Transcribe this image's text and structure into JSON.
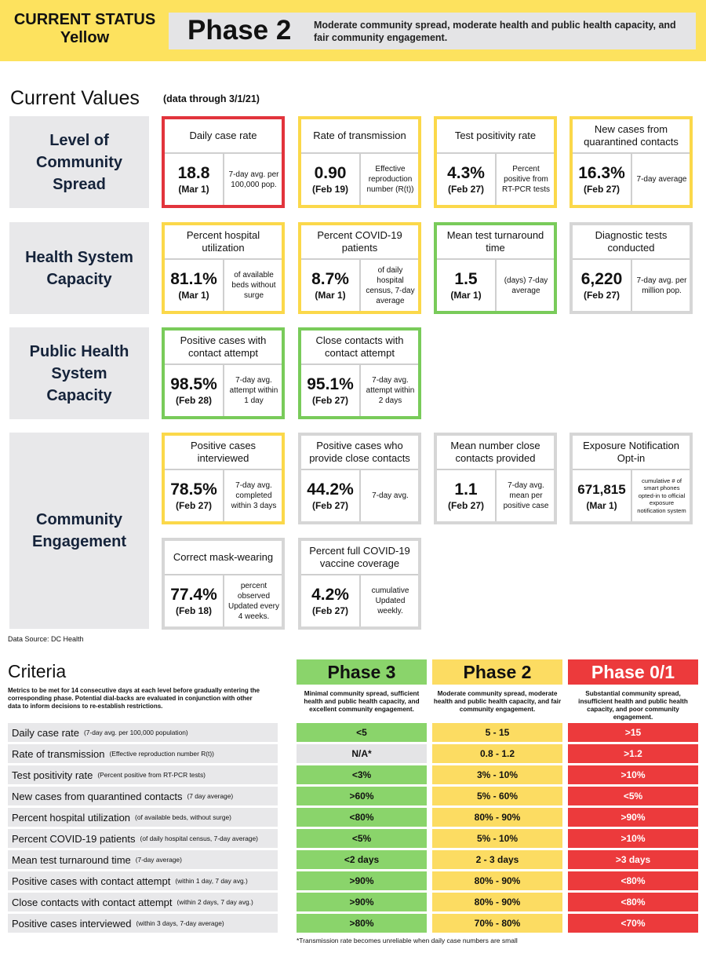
{
  "header": {
    "status_line1": "CURRENT STATUS",
    "status_line2": "Yellow",
    "phase": "Phase 2",
    "description": "Moderate community spread, moderate health and public health capacity, and fair community engagement.",
    "colors": {
      "banner": "#fde25e",
      "panel": "#e4e4e6"
    }
  },
  "current_values": {
    "title": "Current Values",
    "subtitle": "(data through 3/1/21)",
    "rows": [
      {
        "label": "Level of Community Spread",
        "cards": [
          {
            "title": "Daily case rate",
            "value": "18.8",
            "date": "(Mar 1)",
            "desc": "7-day avg. per 100,000 pop.",
            "status": "red"
          },
          {
            "title": "Rate of transmission",
            "value": "0.90",
            "date": "(Feb 19)",
            "desc": "Effective reproduction number (R(t))",
            "status": "yellow"
          },
          {
            "title": "Test positivity rate",
            "value": "4.3%",
            "date": "(Feb 27)",
            "desc": "Percent positive from RT-PCR tests",
            "status": "yellow"
          },
          {
            "title": "New cases from quarantined contacts",
            "value": "16.3%",
            "date": "(Feb 27)",
            "desc": "7-day average",
            "status": "yellow"
          }
        ]
      },
      {
        "label": "Health System Capacity",
        "cards": [
          {
            "title": "Percent hospital utilization",
            "value": "81.1%",
            "date": "(Mar 1)",
            "desc": "of available beds without surge",
            "status": "yellow"
          },
          {
            "title": "Percent COVID-19 patients",
            "value": "8.7%",
            "date": "(Mar 1)",
            "desc": "of daily hospital census, 7-day average",
            "status": "yellow"
          },
          {
            "title": "Mean test turnaround time",
            "value": "1.5",
            "date": "(Mar 1)",
            "desc": "(days) 7-day average",
            "status": "green"
          },
          {
            "title": "Diagnostic tests conducted",
            "value": "6,220",
            "date": "(Feb 27)",
            "desc": "7-day avg. per million pop.",
            "status": "gray"
          }
        ]
      },
      {
        "label": "Public Health System Capacity",
        "cards": [
          {
            "title": "Positive cases with contact attempt",
            "value": "98.5%",
            "date": "(Feb 28)",
            "desc": "7-day avg. attempt within 1 day",
            "status": "green"
          },
          {
            "title": "Close contacts with contact attempt",
            "value": "95.1%",
            "date": "(Feb 27)",
            "desc": "7-day avg. attempt within 2 days",
            "status": "green"
          }
        ]
      },
      {
        "label": "Community Engagement",
        "cards": [
          {
            "title": "Positive cases interviewed",
            "value": "78.5%",
            "date": "(Feb 27)",
            "desc": "7-day avg. completed within 3 days",
            "status": "yellow"
          },
          {
            "title": "Positive cases who provide close contacts",
            "value": "44.2%",
            "date": "(Feb 27)",
            "desc": "7-day avg.",
            "status": "gray"
          },
          {
            "title": "Mean number close contacts provided",
            "value": "1.1",
            "date": "(Feb 27)",
            "desc": "7-day avg. mean per positive case",
            "status": "gray"
          },
          {
            "title": "Exposure Notification Opt-in",
            "value": "671,815",
            "date": "(Mar 1)",
            "desc": "cumulative # of smart phones opted-in to official exposure notification system",
            "status": "gray"
          },
          {
            "title": "Correct mask-wearing",
            "value": "77.4%",
            "date": "(Feb 18)",
            "desc": "percent observed Updated every 4 weeks.",
            "status": "gray"
          },
          {
            "title": "Percent full COVID-19 vaccine coverage",
            "value": "4.2%",
            "date": "(Feb 27)",
            "desc": "cumulative Updated weekly.",
            "status": "gray"
          }
        ]
      }
    ]
  },
  "data_source": "Data Source: DC Health",
  "criteria": {
    "title": "Criteria",
    "note": "Metrics to be met for 14 consecutive days at each level before gradually entering the corresponding phase. Potential dial-backs are evaluated in conjunction with other data to inform decisions to re-establish restrictions.",
    "phases": [
      {
        "name": "Phase 3",
        "desc": "Minimal community spread, sufficient health and public health capacity, and excellent community engagement.",
        "color": "#8ad46b"
      },
      {
        "name": "Phase 2",
        "desc": "Moderate community spread, moderate health and public health capacity, and fair community engagement.",
        "color": "#fcdc62"
      },
      {
        "name": "Phase 0/1",
        "desc": "Substantial community spread, insufficient health and public health capacity, and poor community engagement.",
        "color": "#ec3a3c"
      }
    ],
    "rows": [
      {
        "name": "Daily case rate",
        "unit": "(7-day avg. per 100,000 population)",
        "p3": "<5",
        "p2": "5 - 15",
        "p01": ">15"
      },
      {
        "name": "Rate of transmission",
        "unit": "(Effective reproduction number R(t))",
        "p3": "N/A*",
        "p2": "0.8 - 1.2",
        "p01": ">1.2"
      },
      {
        "name": "Test positivity rate",
        "unit": "(Percent positive from RT-PCR tests)",
        "p3": "<3%",
        "p2": "3% - 10%",
        "p01": ">10%"
      },
      {
        "name": "New cases from quarantined contacts",
        "unit": "(7 day average)",
        "p3": ">60%",
        "p2": "5% - 60%",
        "p01": "<5%"
      },
      {
        "name": "Percent hospital utilization",
        "unit": "(of available beds, without surge)",
        "p3": "<80%",
        "p2": "80% - 90%",
        "p01": ">90%"
      },
      {
        "name": "Percent COVID-19 patients",
        "unit": "(of daily hospital census, 7-day average)",
        "p3": "<5%",
        "p2": "5% - 10%",
        "p01": ">10%"
      },
      {
        "name": "Mean test turnaround time",
        "unit": "(7-day average)",
        "p3": "<2 days",
        "p2": "2 - 3 days",
        "p01": ">3 days"
      },
      {
        "name": "Positive cases with contact attempt",
        "unit": "(within 1 day, 7 day avg.)",
        "p3": ">90%",
        "p2": "80% - 90%",
        "p01": "<80%"
      },
      {
        "name": "Close contacts with contact attempt",
        "unit": "(within 2 days, 7 day avg.)",
        "p3": ">90%",
        "p2": "80% - 90%",
        "p01": "<80%"
      },
      {
        "name": "Positive cases interviewed",
        "unit": "(within 3 days, 7-day average)",
        "p3": ">80%",
        "p2": "70% - 80%",
        "p01": "<70%"
      }
    ],
    "footnote": "*Transmission rate becomes unreliable when daily case numbers are small"
  }
}
